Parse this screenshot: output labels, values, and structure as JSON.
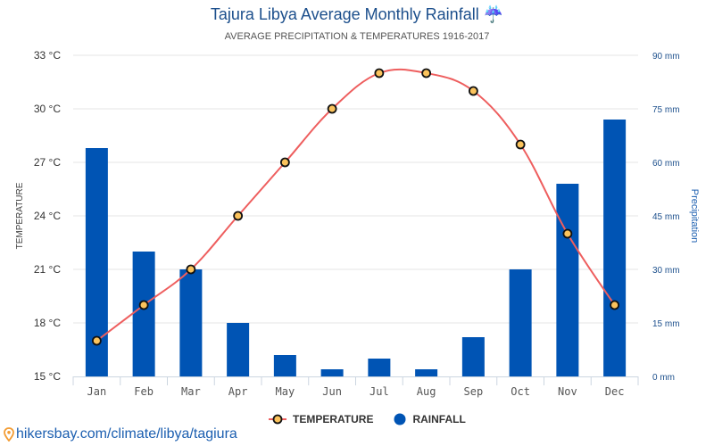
{
  "header": {
    "title": "Tajura Libya Average Monthly Rainfall",
    "title_icon": "umbrella-rain-icon",
    "subtitle": "AVERAGE PRECIPITATION & TEMPERATURES 1916-2017"
  },
  "colors": {
    "title": "#1c4f8c",
    "rainfall_bar": "#0054b4",
    "temperature_line": "#ee5e5e",
    "temperature_marker_fill": "#fbc35c",
    "temperature_marker_stroke": "#111111",
    "grid": "#e6e6e6"
  },
  "chart_data": {
    "type": "bar+line",
    "title": "Tajura Libya Average Monthly Rainfall",
    "subtitle": "AVERAGE PRECIPITATION & TEMPERATURES 1916-2017",
    "categories": [
      "Jan",
      "Feb",
      "Mar",
      "Apr",
      "May",
      "Jun",
      "Jul",
      "Aug",
      "Sep",
      "Oct",
      "Nov",
      "Dec"
    ],
    "series": [
      {
        "name": "TEMPERATURE",
        "type": "line",
        "axis": "left",
        "unit": "°C",
        "values": [
          17,
          19,
          21,
          24,
          27,
          30,
          32,
          32,
          31,
          28,
          23,
          19
        ]
      },
      {
        "name": "RAINFALL",
        "type": "bar",
        "axis": "right",
        "unit": "mm",
        "values": [
          64,
          35,
          30,
          15,
          6,
          2,
          5,
          2,
          11,
          30,
          54,
          72
        ]
      }
    ],
    "y_left": {
      "label": "TEMPERATURE",
      "range": [
        15,
        33
      ],
      "ticks": [
        15,
        18,
        21,
        24,
        27,
        30,
        33
      ],
      "tick_labels": [
        "15 °C",
        "18 °C",
        "21 °C",
        "24 °C",
        "27 °C",
        "30 °C",
        "33 °C"
      ]
    },
    "y_right": {
      "label": "Precipitation",
      "range": [
        0,
        90
      ],
      "ticks": [
        0,
        15,
        30,
        45,
        60,
        75,
        90
      ],
      "tick_labels": [
        "0 mm",
        "15 mm",
        "30 mm",
        "45 mm",
        "60 mm",
        "75 mm",
        "90 mm"
      ]
    },
    "grid": true,
    "legend": {
      "position": "bottom-center",
      "entries": [
        "TEMPERATURE",
        "RAINFALL"
      ]
    }
  },
  "footer": {
    "icon": "map-pin-icon",
    "link_text": "hikersbay.com/climate/libya/tagiura"
  }
}
